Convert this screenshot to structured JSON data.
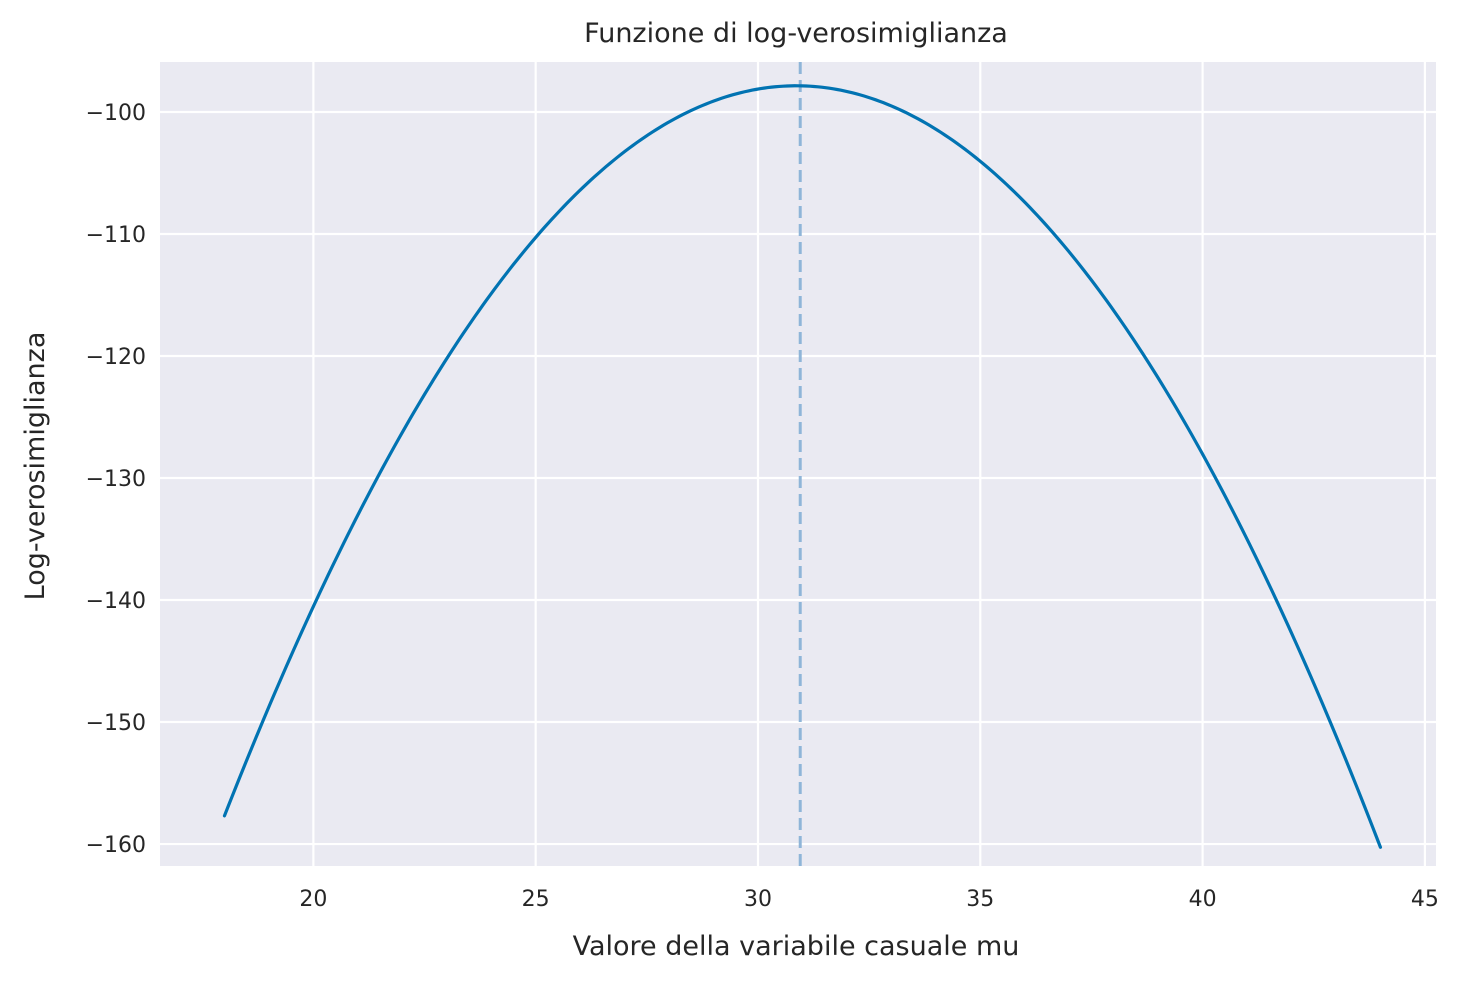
{
  "chart_data": {
    "type": "line",
    "title": "Funzione di log-verosimiglianza",
    "xlabel": "Valore della variabile casuale mu",
    "ylabel": "Log-verosimiglianza",
    "xlim": [
      16.55,
      45.25
    ],
    "ylim": [
      -161.8,
      -95.9
    ],
    "xticks": [
      20,
      25,
      30,
      35,
      40,
      45
    ],
    "xtick_labels": [
      "20",
      "25",
      "30",
      "35",
      "40",
      "45"
    ],
    "yticks": [
      -100,
      -110,
      -120,
      -130,
      -140,
      -150,
      -160
    ],
    "ytick_labels": [
      "−100",
      "−110",
      "−120",
      "−130",
      "−140",
      "−150",
      "−160"
    ],
    "grid": true,
    "background": "#eaeaf2",
    "grid_color": "#ffffff",
    "series": [
      {
        "color": "#0173b2",
        "style": "solid",
        "x": [
          18,
          19,
          20,
          21,
          22,
          23,
          24,
          25,
          26,
          27,
          28,
          29,
          30,
          31,
          32,
          33,
          34,
          35,
          36,
          37,
          38,
          39,
          40,
          41,
          42,
          43,
          44
        ],
        "y": [
          -158.6,
          -149.5,
          -141.1,
          -133.4,
          -126.4,
          -120.1,
          -114.5,
          -109.6,
          -105.4,
          -101.9,
          -99.1,
          -97.0,
          -95.6,
          -98.7,
          -99.3,
          -100.8,
          -102.8,
          -105.4,
          -108.7,
          -112.6,
          -117.2,
          -122.5,
          -128.4,
          -135.0,
          -142.2,
          -150.1,
          -158.6
        ]
      }
    ],
    "vline": {
      "x": 30.95,
      "color": "#8fb5d8",
      "style": "dashed"
    }
  }
}
